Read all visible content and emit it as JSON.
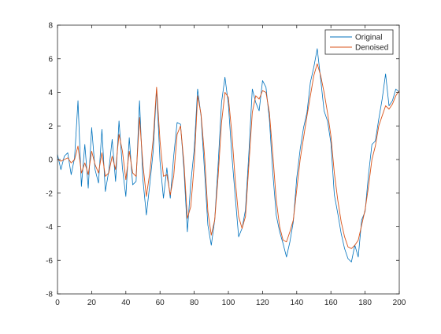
{
  "chart_data": {
    "type": "line",
    "title": "",
    "xlabel": "",
    "ylabel": "",
    "xlim": [
      0,
      200
    ],
    "ylim": [
      -8,
      8
    ],
    "xticks": [
      0,
      20,
      40,
      60,
      80,
      100,
      120,
      140,
      160,
      180,
      200
    ],
    "yticks": [
      -8,
      -6,
      -4,
      -2,
      0,
      2,
      4,
      6,
      8
    ],
    "xtick_labels": [
      "0",
      "20",
      "40",
      "60",
      "80",
      "100",
      "120",
      "140",
      "160",
      "180",
      "200"
    ],
    "ytick_labels": [
      "-8",
      "-6",
      "-4",
      "-2",
      "0",
      "2",
      "4",
      "6",
      "8"
    ],
    "grid": false,
    "legend": {
      "position": "top-right"
    },
    "series": [
      {
        "name": "Original",
        "color": "#0072BD",
        "x": [
          0,
          2,
          4,
          6,
          8,
          10,
          12,
          14,
          16,
          18,
          20,
          22,
          24,
          26,
          28,
          30,
          32,
          34,
          36,
          38,
          40,
          42,
          44,
          46,
          48,
          50,
          52,
          54,
          56,
          58,
          60,
          62,
          64,
          66,
          68,
          70,
          72,
          74,
          76,
          78,
          80,
          82,
          84,
          86,
          88,
          90,
          92,
          94,
          96,
          98,
          100,
          102,
          104,
          106,
          108,
          110,
          112,
          114,
          116,
          118,
          120,
          122,
          124,
          126,
          128,
          130,
          132,
          134,
          136,
          138,
          140,
          142,
          144,
          146,
          148,
          150,
          152,
          154,
          156,
          158,
          160,
          162,
          164,
          166,
          168,
          170,
          172,
          174,
          176,
          178,
          180,
          182,
          184,
          186,
          188,
          190,
          192,
          194,
          196,
          198,
          200
        ],
        "y": [
          0.3,
          -0.6,
          0.2,
          0.4,
          -0.9,
          0.1,
          3.5,
          -1.6,
          0.9,
          -1.7,
          1.9,
          -0.6,
          -1.4,
          1.8,
          -1.9,
          -0.7,
          1.2,
          -1.3,
          2.3,
          -0.5,
          -2.2,
          1.3,
          -1.5,
          -1.3,
          3.5,
          -1.2,
          -3.3,
          -1.5,
          0.5,
          4.2,
          -0.1,
          -2.3,
          -0.5,
          -2.3,
          0.2,
          2.2,
          2.1,
          -0.6,
          -4.3,
          -1.4,
          0.6,
          4.2,
          2.6,
          -0.6,
          -3.9,
          -5.1,
          -3.6,
          -0.3,
          3.4,
          4.9,
          3.3,
          0.3,
          -2.2,
          -4.6,
          -4.1,
          -3.0,
          0.4,
          4.2,
          3.4,
          2.9,
          4.7,
          4.3,
          2.4,
          -0.8,
          -3.3,
          -4.3,
          -5.0,
          -5.8,
          -4.9,
          -3.7,
          -1.1,
          0.6,
          1.9,
          2.8,
          4.6,
          5.5,
          6.6,
          4.8,
          2.9,
          2.3,
          1.0,
          -2.1,
          -3.2,
          -4.4,
          -5.3,
          -5.9,
          -6.1,
          -5.1,
          -5.8,
          -3.6,
          -3.1,
          -0.9,
          0.9,
          1.1,
          2.4,
          3.6,
          5.1,
          3.2,
          3.5,
          4.2,
          4.0
        ]
      },
      {
        "name": "Denoised",
        "color": "#D95319",
        "x": [
          0,
          2,
          4,
          6,
          8,
          10,
          12,
          14,
          16,
          18,
          20,
          22,
          24,
          26,
          28,
          30,
          32,
          34,
          36,
          38,
          40,
          42,
          44,
          46,
          48,
          50,
          52,
          54,
          56,
          58,
          60,
          62,
          64,
          66,
          68,
          70,
          72,
          74,
          76,
          78,
          80,
          82,
          84,
          86,
          88,
          90,
          92,
          94,
          96,
          98,
          100,
          102,
          104,
          106,
          108,
          110,
          112,
          114,
          116,
          118,
          120,
          122,
          124,
          126,
          128,
          130,
          132,
          134,
          136,
          138,
          140,
          142,
          144,
          146,
          148,
          150,
          152,
          154,
          156,
          158,
          160,
          162,
          164,
          166,
          168,
          170,
          172,
          174,
          176,
          178,
          180,
          182,
          184,
          186,
          188,
          190,
          192,
          194,
          196,
          198,
          200
        ],
        "y": [
          0.0,
          -0.1,
          0.0,
          0.1,
          -0.2,
          0.0,
          0.8,
          -0.8,
          -0.2,
          -0.9,
          0.5,
          -0.3,
          -0.8,
          0.4,
          -1.0,
          -0.8,
          0.2,
          -0.6,
          1.5,
          0.5,
          -1.2,
          0.5,
          -0.8,
          -1.0,
          2.5,
          -0.3,
          -2.2,
          -0.8,
          1.2,
          4.3,
          1.1,
          -1.0,
          -0.9,
          -2.1,
          -1.0,
          1.5,
          2.0,
          -0.2,
          -3.5,
          -2.8,
          -0.3,
          3.8,
          2.7,
          0.3,
          -3.1,
          -4.5,
          -3.6,
          -1.0,
          2.2,
          4.0,
          3.7,
          1.6,
          -1.2,
          -3.4,
          -4.1,
          -3.4,
          -0.3,
          2.8,
          3.8,
          3.6,
          4.1,
          4.0,
          2.8,
          0.3,
          -2.4,
          -4.0,
          -4.8,
          -4.9,
          -4.3,
          -3.6,
          -1.8,
          0.0,
          1.3,
          2.6,
          3.8,
          5.0,
          5.7,
          5.0,
          4.0,
          2.8,
          1.4,
          -0.8,
          -2.4,
          -3.7,
          -4.6,
          -5.2,
          -5.3,
          -5.1,
          -4.8,
          -3.9,
          -3.0,
          -1.6,
          0.0,
          0.8,
          2.0,
          2.6,
          3.2,
          3.0,
          3.3,
          3.8,
          4.1
        ]
      }
    ]
  }
}
